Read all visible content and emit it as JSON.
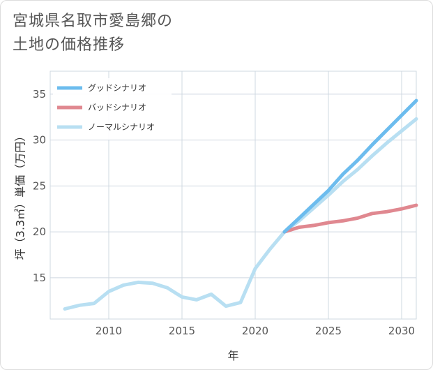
{
  "title_line1": "宮城県名取市愛島郷の",
  "title_line2": "土地の価格推移",
  "chart_data": {
    "type": "line",
    "xlabel": "年",
    "ylabel": "坪（3.3㎡）単価（万円）",
    "xlim": [
      2006,
      2031
    ],
    "ylim": [
      10.5,
      37.5
    ],
    "xticks": [
      2010,
      2015,
      2020,
      2025,
      2030
    ],
    "yticks": [
      15,
      20,
      25,
      30,
      35
    ],
    "grid": true,
    "legend_position": "top-left",
    "series": [
      {
        "name": "グッドシナリオ",
        "color": "#6cbcee",
        "x": [
          2022,
          2023,
          2024,
          2025,
          2026,
          2027,
          2028,
          2029,
          2030,
          2031
        ],
        "y": [
          20.0,
          21.5,
          23.0,
          24.5,
          26.3,
          27.8,
          29.5,
          31.1,
          32.7,
          34.3
        ]
      },
      {
        "name": "バッドシナリオ",
        "color": "#e08890",
        "x": [
          2022,
          2023,
          2024,
          2025,
          2026,
          2027,
          2028,
          2029,
          2030,
          2031
        ],
        "y": [
          20.0,
          20.5,
          20.7,
          21.0,
          21.2,
          21.5,
          22.0,
          22.2,
          22.5,
          22.9
        ]
      },
      {
        "name": "ノーマルシナリオ",
        "color": "#b8dff2",
        "x": [
          2007,
          2008,
          2009,
          2010,
          2011,
          2012,
          2013,
          2014,
          2015,
          2016,
          2017,
          2018,
          2019,
          2020,
          2021,
          2022,
          2023,
          2024,
          2025,
          2026,
          2027,
          2028,
          2029,
          2030,
          2031
        ],
        "y": [
          11.6,
          12.0,
          12.2,
          13.5,
          14.2,
          14.5,
          14.4,
          13.9,
          12.9,
          12.6,
          13.2,
          11.9,
          12.3,
          16.0,
          18.1,
          20.0,
          21.2,
          22.6,
          24.0,
          25.5,
          26.8,
          28.3,
          29.7,
          31.0,
          32.3
        ]
      }
    ]
  }
}
